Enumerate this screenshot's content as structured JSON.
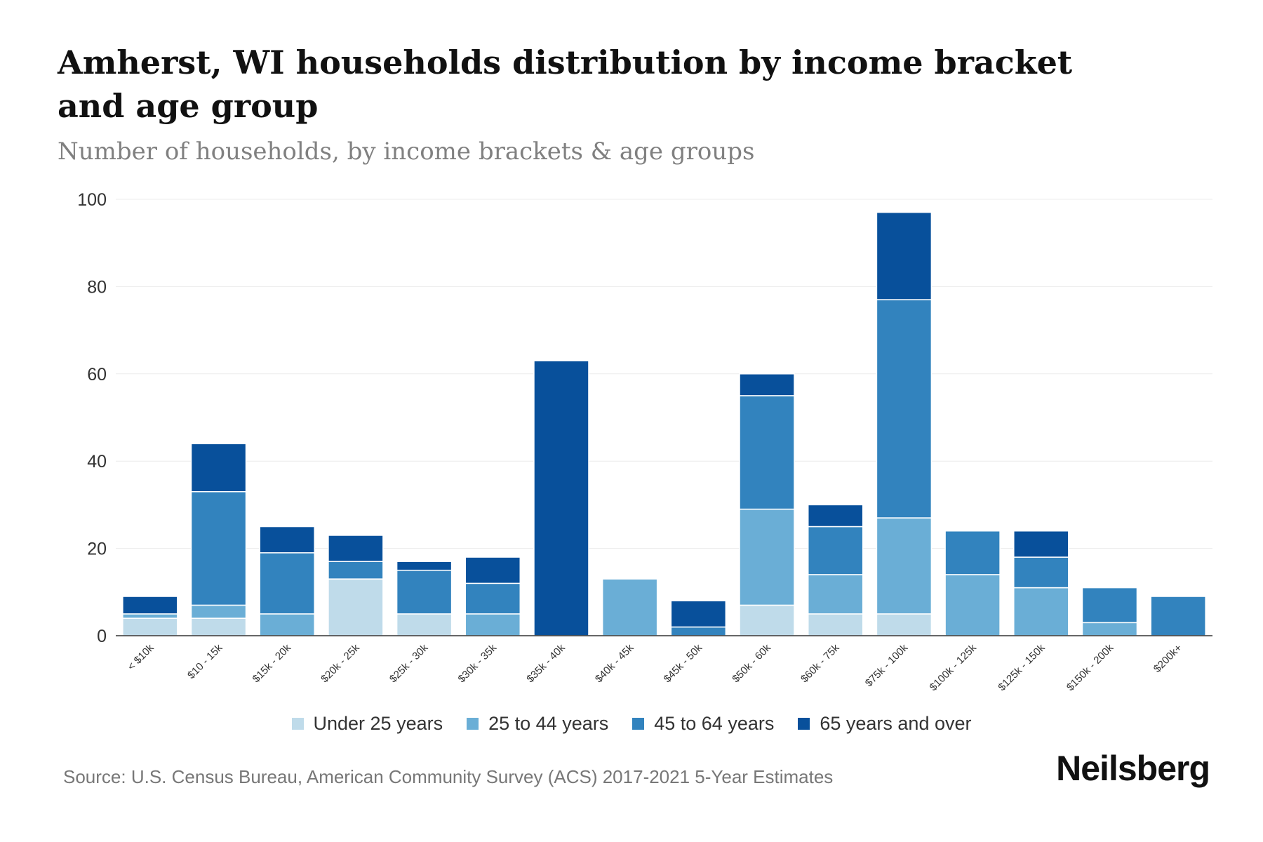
{
  "header": {
    "title": "Amherst, WI households distribution by income bracket and age group",
    "subtitle": "Number of households, by income brackets & age groups"
  },
  "chart_data": {
    "type": "bar",
    "stacked": true,
    "title": "Amherst, WI households distribution by income bracket and age group",
    "subtitle": "Number of households, by income brackets & age groups",
    "xlabel": "",
    "ylabel": "",
    "ylim": [
      0,
      100
    ],
    "yticks": [
      0,
      20,
      40,
      60,
      80,
      100
    ],
    "grid": true,
    "legend_position": "bottom",
    "categories": [
      "< $10k",
      "$10 - 15k",
      "$15k - 20k",
      "$20k - 25k",
      "$25k - 30k",
      "$30k - 35k",
      "$35k - 40k",
      "$40k - 45k",
      "$45k - 50k",
      "$50k - 60k",
      "$60k - 75k",
      "$75k - 100k",
      "$100k - 125k",
      "$125k - 150k",
      "$150k - 200k",
      "$200k+"
    ],
    "series": [
      {
        "name": "Under 25 years",
        "color": "#bfdbea",
        "values": [
          4,
          4,
          0,
          13,
          5,
          0,
          0,
          0,
          0,
          7,
          5,
          5,
          0,
          0,
          0,
          0
        ]
      },
      {
        "name": "25 to 44 years",
        "color": "#6aaed6",
        "values": [
          1,
          3,
          5,
          0,
          0,
          5,
          0,
          13,
          0,
          22,
          9,
          22,
          14,
          11,
          3,
          0
        ]
      },
      {
        "name": "45 to 64 years",
        "color": "#3283be",
        "values": [
          0,
          26,
          14,
          4,
          10,
          7,
          0,
          0,
          2,
          26,
          11,
          50,
          10,
          7,
          8,
          9
        ]
      },
      {
        "name": "65 years and over",
        "color": "#08509b",
        "values": [
          4,
          11,
          6,
          6,
          2,
          6,
          63,
          0,
          6,
          5,
          5,
          20,
          0,
          6,
          0,
          0
        ]
      }
    ]
  },
  "footer": {
    "source": "Source: U.S. Census Bureau, American Community Survey (ACS) 2017-2021 5-Year Estimates",
    "brand": "Neilsberg"
  }
}
